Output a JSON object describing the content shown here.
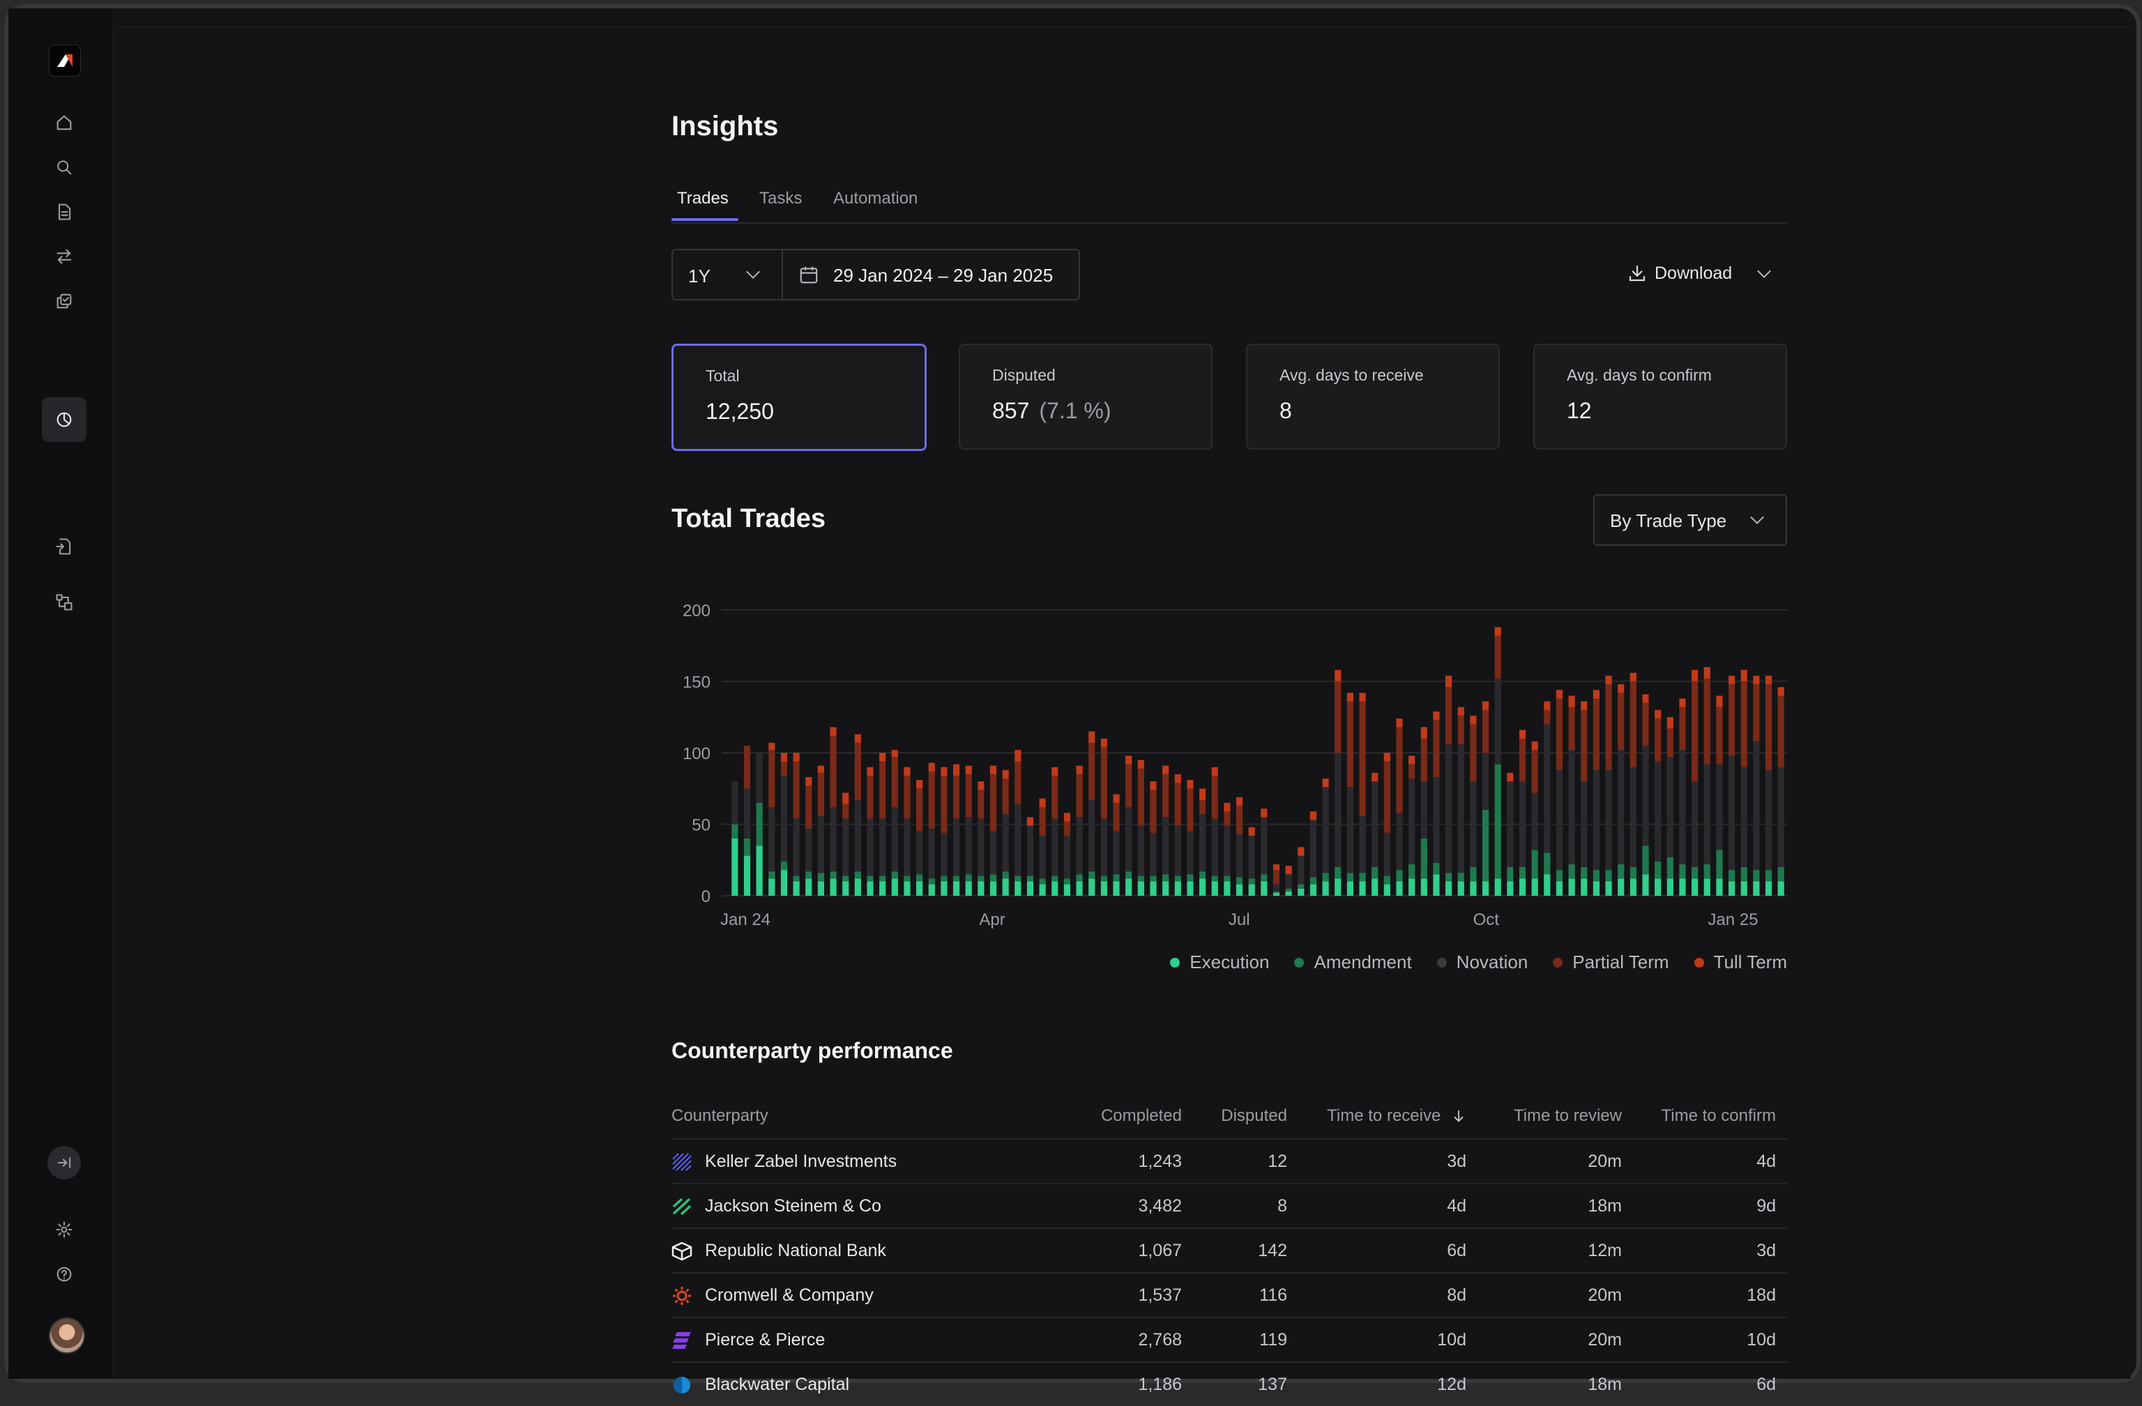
{
  "page": {
    "title": "Insights"
  },
  "tabs": [
    {
      "label": "Trades"
    },
    {
      "label": "Tasks"
    },
    {
      "label": "Automation"
    }
  ],
  "filters": {
    "range": "1Y",
    "date_range": "29 Jan 2024 – 29 Jan 2025",
    "download_label": "Download"
  },
  "stats": [
    {
      "label": "Total",
      "value": "12,250",
      "sub": ""
    },
    {
      "label": "Disputed",
      "value": "857",
      "sub": "(7.1 %)"
    },
    {
      "label": "Avg. days to receive",
      "value": "8",
      "sub": ""
    },
    {
      "label": "Avg. days to confirm",
      "value": "12",
      "sub": ""
    }
  ],
  "chart_section": {
    "title": "Total Trades",
    "grouping": "By Trade Type"
  },
  "chart_data": {
    "type": "bar",
    "stacked": true,
    "ylim": [
      0,
      200
    ],
    "y_ticks": [
      0,
      50,
      100,
      150,
      200
    ],
    "x_ticks": [
      "Jan 24",
      "Apr",
      "Jul",
      "Oct",
      "Jan 25"
    ],
    "grid": true,
    "legend_position": "bottom-right",
    "series": [
      {
        "name": "Execution",
        "color": "#2fd08b",
        "values": [
          40,
          28,
          35,
          12,
          18,
          10,
          12,
          10,
          12,
          10,
          12,
          10,
          10,
          12,
          10,
          10,
          8,
          10,
          10,
          10,
          10,
          10,
          12,
          10,
          10,
          8,
          10,
          8,
          10,
          12,
          10,
          10,
          12,
          10,
          10,
          10,
          10,
          10,
          12,
          10,
          10,
          8,
          8,
          10,
          2,
          3,
          5,
          8,
          10,
          12,
          10,
          10,
          12,
          8,
          10,
          12,
          12,
          15,
          10,
          10,
          10,
          10,
          12,
          10,
          12,
          12,
          15,
          10,
          12,
          12,
          10,
          10,
          12,
          12,
          15,
          12,
          12,
          12,
          12,
          12,
          12,
          10,
          10,
          10,
          10,
          10
        ]
      },
      {
        "name": "Amendment",
        "color": "#1f7a4f",
        "values": [
          10,
          12,
          30,
          5,
          6,
          4,
          5,
          6,
          5,
          4,
          5,
          4,
          4,
          5,
          4,
          5,
          4,
          4,
          4,
          5,
          4,
          5,
          5,
          4,
          4,
          4,
          4,
          4,
          5,
          5,
          4,
          5,
          5,
          4,
          4,
          5,
          4,
          5,
          5,
          4,
          4,
          5,
          4,
          5,
          1,
          2,
          3,
          5,
          6,
          8,
          6,
          6,
          8,
          6,
          8,
          10,
          28,
          8,
          6,
          6,
          10,
          50,
          80,
          10,
          8,
          20,
          15,
          8,
          10,
          8,
          8,
          8,
          10,
          8,
          20,
          12,
          15,
          10,
          8,
          10,
          20,
          8,
          10,
          8,
          8,
          10
        ]
      },
      {
        "name": "Novation",
        "color": "#2a2a2e",
        "values": [
          30,
          35,
          35,
          45,
          60,
          40,
          30,
          40,
          45,
          40,
          50,
          40,
          40,
          45,
          40,
          30,
          35,
          30,
          40,
          40,
          40,
          30,
          40,
          50,
          35,
          30,
          40,
          30,
          40,
          50,
          40,
          30,
          45,
          35,
          30,
          40,
          35,
          30,
          40,
          40,
          35,
          30,
          30,
          40,
          5,
          10,
          20,
          40,
          60,
          80,
          60,
          40,
          60,
          30,
          40,
          60,
          40,
          60,
          90,
          90,
          60,
          40,
          60,
          60,
          60,
          40,
          90,
          70,
          80,
          60,
          70,
          70,
          80,
          70,
          70,
          70,
          70,
          80,
          60,
          70,
          60,
          80,
          70,
          90,
          70,
          70
        ]
      },
      {
        "name": "Partial Term",
        "color": "#7a2a18",
        "values": [
          0,
          30,
          0,
          40,
          10,
          40,
          30,
          30,
          50,
          10,
          40,
          30,
          40,
          35,
          30,
          30,
          40,
          40,
          30,
          30,
          20,
          40,
          25,
          30,
          0,
          20,
          30,
          10,
          30,
          40,
          50,
          20,
          30,
          40,
          30,
          30,
          30,
          30,
          10,
          30,
          10,
          20,
          0,
          0,
          10,
          0,
          0,
          0,
          0,
          50,
          60,
          80,
          0,
          50,
          60,
          10,
          30,
          40,
          40,
          20,
          40,
          30,
          30,
          0,
          30,
          30,
          10,
          50,
          30,
          50,
          50,
          60,
          40,
          60,
          30,
          30,
          20,
          30,
          70,
          60,
          40,
          50,
          60,
          40,
          60,
          50
        ]
      },
      {
        "name": "Tull Term",
        "color": "#c23a1a",
        "values": [
          0,
          0,
          0,
          5,
          6,
          6,
          6,
          5,
          6,
          8,
          6,
          6,
          6,
          5,
          6,
          6,
          6,
          6,
          8,
          6,
          6,
          6,
          6,
          8,
          6,
          6,
          6,
          6,
          6,
          8,
          6,
          6,
          6,
          6,
          6,
          6,
          6,
          6,
          8,
          6,
          6,
          6,
          6,
          6,
          4,
          6,
          6,
          6,
          6,
          8,
          6,
          6,
          6,
          6,
          6,
          6,
          8,
          6,
          8,
          6,
          6,
          6,
          6,
          6,
          6,
          6,
          6,
          6,
          8,
          6,
          6,
          6,
          6,
          6,
          6,
          6,
          8,
          6,
          8,
          8,
          8,
          6,
          8,
          6,
          6,
          6
        ]
      }
    ]
  },
  "counterparty": {
    "title": "Counterparty performance",
    "columns": [
      "Counterparty",
      "Completed",
      "Disputed",
      "Time to receive",
      "Time to review",
      "Time to confirm"
    ],
    "rows": [
      {
        "name": "Keller Zabel Investments",
        "completed": "1,243",
        "disputed": "12",
        "receive": "3d",
        "review": "20m",
        "confirm": "4d",
        "logo": "stripes-blue-icon",
        "color": "#5b5bf0"
      },
      {
        "name": "Jackson Steinem & Co",
        "completed": "3,482",
        "disputed": "8",
        "receive": "4d",
        "review": "18m",
        "confirm": "9d",
        "logo": "slash-green-icon",
        "color": "#2fbf7a"
      },
      {
        "name": "Republic National Bank",
        "completed": "1,067",
        "disputed": "142",
        "receive": "6d",
        "review": "12m",
        "confirm": "3d",
        "logo": "cube-white-icon",
        "color": "#f0f0f2"
      },
      {
        "name": "Cromwell & Company",
        "completed": "1,537",
        "disputed": "116",
        "receive": "8d",
        "review": "20m",
        "confirm": "18d",
        "logo": "sun-orange-icon",
        "color": "#e0481e"
      },
      {
        "name": "Pierce & Pierce",
        "completed": "2,768",
        "disputed": "119",
        "receive": "10d",
        "review": "20m",
        "confirm": "10d",
        "logo": "bars-purple-icon",
        "color": "#8a3cf0"
      },
      {
        "name": "Blackwater Capital",
        "completed": "1,186",
        "disputed": "137",
        "receive": "12d",
        "review": "18m",
        "confirm": "6d",
        "logo": "circle-blue-icon",
        "color": "#1a8ad8"
      }
    ]
  },
  "sidebar": {
    "items": [
      {
        "icon": "home-icon"
      },
      {
        "icon": "search-icon"
      },
      {
        "icon": "document-icon"
      },
      {
        "icon": "transfer-icon"
      },
      {
        "icon": "copy-check-icon"
      },
      {
        "icon": "chart-pie-icon",
        "active": true
      },
      {
        "icon": "file-return-icon"
      },
      {
        "icon": "workflow-icon"
      }
    ],
    "bottom": [
      {
        "icon": "collapse-icon"
      },
      {
        "icon": "settings-icon"
      },
      {
        "icon": "help-icon"
      }
    ]
  }
}
